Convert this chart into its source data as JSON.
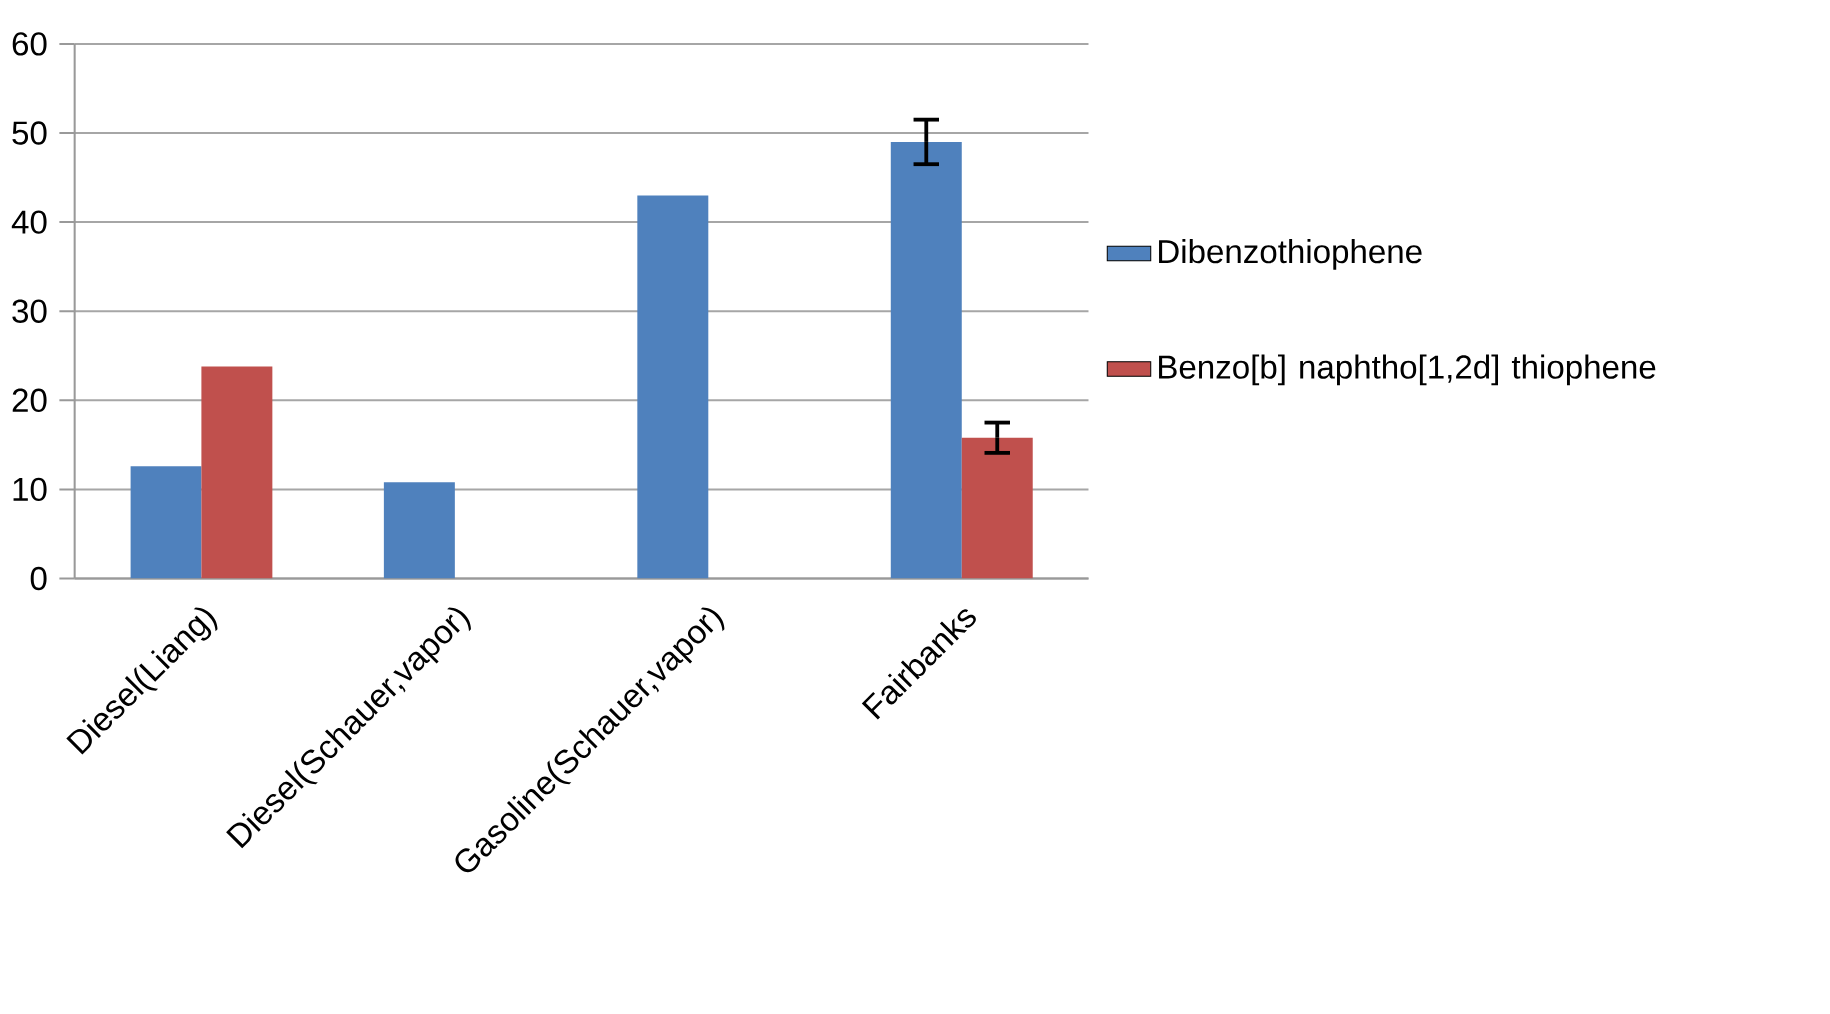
{
  "chart_data": {
    "type": "bar",
    "categories": [
      "Diesel(Liang)",
      "Diesel(Schauer,vapor)",
      "Gasoline(Schauer,vapor)",
      "Fairbanks"
    ],
    "series": [
      {
        "name": "Dibenzothiophene",
        "color": "#4f81bd",
        "values": [
          12.6,
          10.8,
          43,
          49
        ],
        "errors": [
          null,
          null,
          null,
          2.5
        ]
      },
      {
        "name": "Benzo[b] naphtho[1,2d] thiophene",
        "color": "#c0504d",
        "values": [
          23.8,
          null,
          null,
          15.8
        ],
        "errors": [
          null,
          null,
          null,
          1.7
        ]
      }
    ],
    "ylim": [
      0,
      60
    ],
    "yticks": [
      0,
      10,
      20,
      30,
      40,
      50,
      60
    ],
    "grid": "y",
    "legend": "right"
  }
}
